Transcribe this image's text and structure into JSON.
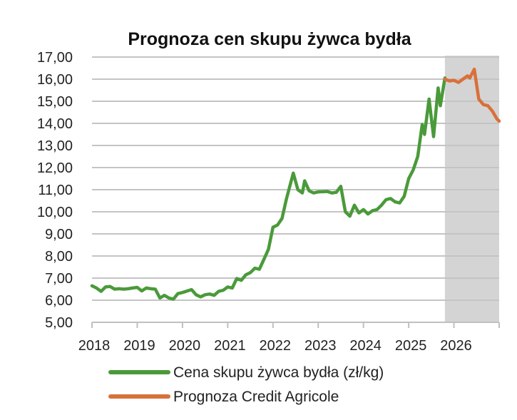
{
  "chart_data": {
    "type": "line",
    "title": "Prognoza cen skupu żywca bydła",
    "xlabel": "",
    "ylabel": "",
    "ylim": [
      5,
      17
    ],
    "xlim": [
      2018,
      2027
    ],
    "grid": true,
    "legend_position": "bottom",
    "y_ticks": [
      "5,00",
      "6,00",
      "7,00",
      "8,00",
      "9,00",
      "10,00",
      "11,00",
      "12,00",
      "13,00",
      "14,00",
      "15,00",
      "16,00",
      "17,00"
    ],
    "x_ticks": [
      "2018",
      "2019",
      "2020",
      "2021",
      "2022",
      "2023",
      "2024",
      "2025",
      "2026"
    ],
    "forecast_shading": {
      "from": 2025.8,
      "to": 2027.0,
      "color": "#d4d4d4"
    },
    "series": [
      {
        "name": "Cena skupu żywca bydła (zł/kg)",
        "color": "#4a9a3a",
        "x": [
          2018.0,
          2018.1,
          2018.2,
          2018.3,
          2018.4,
          2018.5,
          2018.6,
          2018.7,
          2018.8,
          2018.9,
          2019.0,
          2019.1,
          2019.2,
          2019.3,
          2019.4,
          2019.5,
          2019.6,
          2019.7,
          2019.8,
          2019.9,
          2020.0,
          2020.2,
          2020.3,
          2020.4,
          2020.5,
          2020.6,
          2020.7,
          2020.8,
          2020.9,
          2021.0,
          2021.1,
          2021.2,
          2021.3,
          2021.4,
          2021.5,
          2021.6,
          2021.7,
          2021.8,
          2021.9,
          2022.0,
          2022.1,
          2022.2,
          2022.3,
          2022.45,
          2022.55,
          2022.65,
          2022.7,
          2022.8,
          2022.9,
          2023.0,
          2023.2,
          2023.3,
          2023.4,
          2023.5,
          2023.6,
          2023.7,
          2023.8,
          2023.9,
          2024.0,
          2024.1,
          2024.2,
          2024.3,
          2024.4,
          2024.5,
          2024.6,
          2024.7,
          2024.8,
          2024.9,
          2025.0,
          2025.1,
          2025.2,
          2025.3,
          2025.35,
          2025.45,
          2025.55,
          2025.65,
          2025.7,
          2025.8
        ],
        "values": [
          6.65,
          6.55,
          6.4,
          6.6,
          6.62,
          6.5,
          6.52,
          6.5,
          6.52,
          6.55,
          6.58,
          6.42,
          6.55,
          6.52,
          6.5,
          6.1,
          6.22,
          6.1,
          6.05,
          6.3,
          6.35,
          6.48,
          6.25,
          6.15,
          6.25,
          6.28,
          6.22,
          6.4,
          6.45,
          6.6,
          6.55,
          6.98,
          6.9,
          7.15,
          7.25,
          7.45,
          7.4,
          7.85,
          8.3,
          9.3,
          9.4,
          9.7,
          10.6,
          11.75,
          11.0,
          10.85,
          11.4,
          10.95,
          10.85,
          10.9,
          10.92,
          10.85,
          10.88,
          11.15,
          10.0,
          9.8,
          10.3,
          9.95,
          10.1,
          9.9,
          10.05,
          10.1,
          10.3,
          10.55,
          10.6,
          10.45,
          10.4,
          10.7,
          11.5,
          11.9,
          12.5,
          13.95,
          13.5,
          15.1,
          13.4,
          15.6,
          14.8,
          16.05
        ]
      },
      {
        "name": "Prognoza Credit Agricole",
        "color": "#d9703a",
        "x": [
          2025.8,
          2025.9,
          2026.0,
          2026.1,
          2026.2,
          2026.3,
          2026.35,
          2026.45,
          2026.55,
          2026.65,
          2026.75,
          2026.85,
          2026.95,
          2027.0
        ],
        "values": [
          16.0,
          15.92,
          15.95,
          15.85,
          16.0,
          16.15,
          16.05,
          16.45,
          15.1,
          14.85,
          14.8,
          14.55,
          14.2,
          14.1
        ]
      }
    ]
  }
}
